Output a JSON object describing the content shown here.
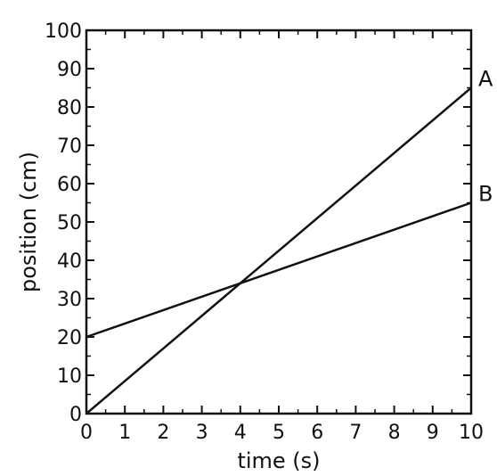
{
  "chart_data": {
    "type": "line",
    "xlabel": "time (s)",
    "ylabel": "position (cm)",
    "xlim": [
      0,
      10
    ],
    "ylim": [
      0,
      100
    ],
    "x_ticks": [
      0,
      1,
      2,
      3,
      4,
      5,
      6,
      7,
      8,
      9,
      10
    ],
    "y_ticks": [
      0,
      10,
      20,
      30,
      40,
      50,
      60,
      70,
      80,
      90,
      100
    ],
    "x_tick_labels": [
      "0",
      "1",
      "2",
      "3",
      "4",
      "5",
      "6",
      "7",
      "8",
      "9",
      "10"
    ],
    "y_tick_labels": [
      "0",
      "10",
      "20",
      "30",
      "40",
      "50",
      "60",
      "70",
      "80",
      "90",
      "100"
    ],
    "grid": false,
    "line_color": "#111111",
    "series": [
      {
        "name": "A",
        "x": [
          0,
          10
        ],
        "y": [
          0,
          85
        ]
      },
      {
        "name": "B",
        "x": [
          0,
          10
        ],
        "y": [
          20,
          55
        ]
      }
    ]
  }
}
